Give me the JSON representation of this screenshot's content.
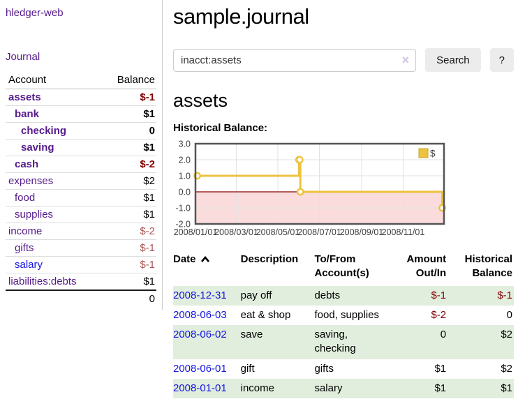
{
  "sidebar": {
    "app_title": "hledger-web",
    "journal_link": "Journal",
    "accounts_header": {
      "account": "Account",
      "balance": "Balance"
    },
    "accounts": [
      {
        "name": "assets",
        "indent": 1,
        "bold": true,
        "balance": "$-1",
        "balance_style": "neg-strong"
      },
      {
        "name": "bank",
        "indent": 2,
        "bold": true,
        "balance": "$1",
        "balance_style": ""
      },
      {
        "name": "checking",
        "indent": 3,
        "bold": true,
        "balance": "0",
        "balance_style": ""
      },
      {
        "name": "saving",
        "indent": 3,
        "bold": true,
        "balance": "$1",
        "balance_style": ""
      },
      {
        "name": "cash",
        "indent": 2,
        "bold": true,
        "balance": "$-2",
        "balance_style": "neg-strong"
      },
      {
        "name": "expenses",
        "indent": 1,
        "bold": false,
        "balance": "$2",
        "balance_style": ""
      },
      {
        "name": "food",
        "indent": 2,
        "bold": false,
        "balance": "$1",
        "balance_style": ""
      },
      {
        "name": "supplies",
        "indent": 2,
        "bold": false,
        "balance": "$1",
        "balance_style": ""
      },
      {
        "name": "income",
        "indent": 1,
        "bold": false,
        "balance": "$-2",
        "balance_style": "neg-muted"
      },
      {
        "name": "gifts",
        "indent": 2,
        "bold": false,
        "balance": "$-1",
        "balance_style": "neg-muted"
      },
      {
        "name": "salary",
        "indent": 2,
        "bold": false,
        "link_style": "unvisited",
        "balance": "$-1",
        "balance_style": "neg-muted"
      },
      {
        "name": "liabilities:debts",
        "indent": 1,
        "bold": false,
        "balance": "$1",
        "balance_style": ""
      }
    ],
    "total": "0"
  },
  "header": {
    "title": "sample.journal"
  },
  "search": {
    "value": "inacct:assets",
    "clear_icon": "×",
    "button_label": "Search",
    "help_label": "?"
  },
  "main": {
    "account_heading": "assets",
    "chart_title": "Historical Balance:"
  },
  "chart_data": {
    "type": "line",
    "title": "Historical Balance",
    "step": true,
    "series": [
      {
        "name": "$",
        "color": "#edc240",
        "points": [
          [
            "2008-01-01",
            1
          ],
          [
            "2008-06-01",
            2
          ],
          [
            "2008-06-02",
            2
          ],
          [
            "2008-06-03",
            0
          ],
          [
            "2008-12-31",
            -1
          ]
        ]
      }
    ],
    "x_ticks": [
      "2008/01/01",
      "2008/03/01",
      "2008/05/01",
      "2008/07/01",
      "2008/09/01",
      "2008/11/01"
    ],
    "y_ticks": [
      "3.0",
      "2.0",
      "1.0",
      "0.0",
      "-1.0",
      "-2.0"
    ],
    "xlim": [
      "2008-01-01",
      "2008-12-31"
    ],
    "ylim": [
      -2,
      3
    ],
    "grid": true,
    "legend_position": "top-right",
    "negative_region_fill": "#fbdcdc",
    "zero_line_color": "#8b0000",
    "border_color": "#545454",
    "gridline_color": "#e2e2e2"
  },
  "register": {
    "headers": {
      "date": "Date",
      "description": "Description",
      "accounts": "To/From Account(s)",
      "amount": "Amount Out/In",
      "balance": "Historical Balance"
    },
    "sort_indicator": "ascending",
    "rows": [
      {
        "date": "2008-12-31",
        "description": "pay off",
        "accounts": [
          "debts"
        ],
        "amount": "$-1",
        "balance": "$-1"
      },
      {
        "date": "2008-06-03",
        "description": "eat & shop",
        "accounts": [
          "food, supplies"
        ],
        "amount": "$-2",
        "balance": "0"
      },
      {
        "date": "2008-06-02",
        "description": "save",
        "accounts": [
          "saving,",
          "checking"
        ],
        "amount": "0",
        "balance": "$2"
      },
      {
        "date": "2008-06-01",
        "description": "gift",
        "accounts": [
          "gifts"
        ],
        "amount": "$1",
        "balance": "$2"
      },
      {
        "date": "2008-01-01",
        "description": "income",
        "accounts": [
          "salary"
        ],
        "amount": "$1",
        "balance": "$1"
      }
    ]
  },
  "colors": {
    "link_visited_purple": "#551a8b",
    "link_unvisited_blue": "#1414e0",
    "negative_strong": "#800000",
    "negative_muted": "#aa5555",
    "row_green": "#e1eedd",
    "chart_line": "#edc240"
  }
}
